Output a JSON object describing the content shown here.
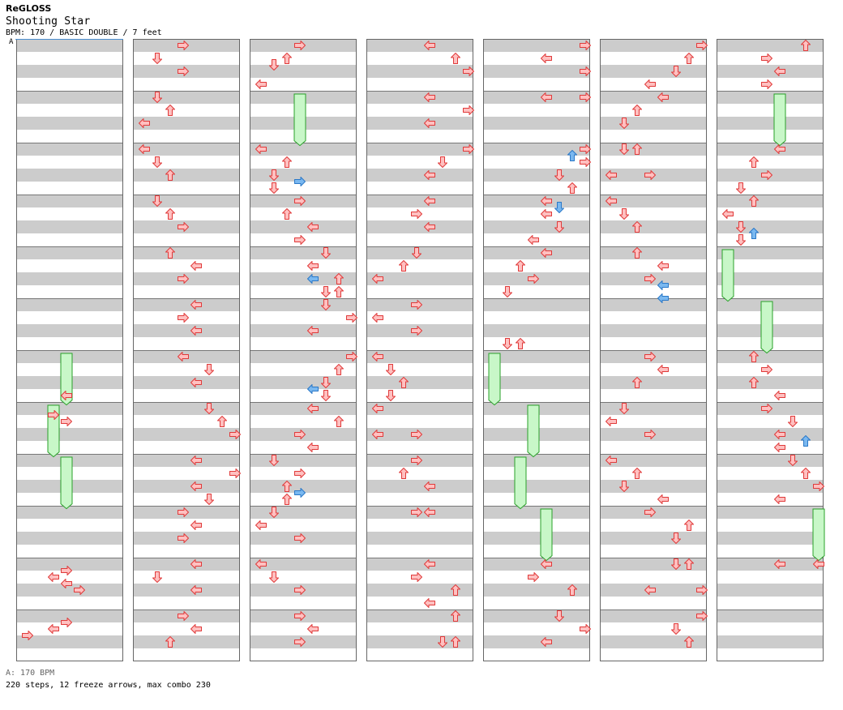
{
  "song": {
    "artist": "ReGLOSS",
    "title": "Shooting Star",
    "info": "BPM: 170 / BASIC DOUBLE / 7 feet",
    "bpm_marker": "A"
  },
  "footer": {
    "bpm_legend": "A: 170 BPM",
    "stats": "220 steps, 12 freeze arrows, max combo 230"
  },
  "colors": {
    "stripe": "#cccccc",
    "arrow_fill": "#ffc0c0",
    "arrow_stroke": "#e03a3a",
    "blue_fill": "#7ab8f0",
    "blue_stroke": "#2a78c8",
    "freeze_fill": "#c8f7c8",
    "freeze_stroke": "#2aa02a",
    "bpm_line": "#4a8ed0"
  },
  "chart_data": {
    "type": "step-chart",
    "columns": 7,
    "measures_per_column": 12,
    "beats_per_measure": 4,
    "lanes": [
      "P1-Left",
      "P1-Down",
      "P1-Up",
      "P1-Right",
      "P2-Left",
      "P2-Down",
      "P2-Up",
      "P2-Right"
    ],
    "arrow_legend": {
      "L": "left",
      "D": "down",
      "U": "up",
      "R": "right"
    },
    "columns_data": [
      {
        "notes": [
          [
            27,
            "L",
            4
          ],
          [
            28.5,
            "R",
            3
          ],
          [
            29,
            "R",
            4
          ],
          [
            40.5,
            "R",
            4
          ],
          [
            41,
            "L",
            3
          ],
          [
            41.5,
            "L",
            4
          ],
          [
            42,
            "R",
            5
          ],
          [
            44.5,
            "R",
            4
          ],
          [
            45,
            "L",
            3
          ],
          [
            45.5,
            "R",
            1
          ]
        ],
        "freezes": [
          [
            24,
            27.6,
            4
          ],
          [
            28,
            31.6,
            3
          ],
          [
            32,
            35.6,
            4
          ]
        ]
      },
      {
        "notes": [
          [
            0,
            "R",
            4
          ],
          [
            1,
            "D",
            2
          ],
          [
            2,
            "R",
            4
          ],
          [
            4,
            "D",
            2
          ],
          [
            5,
            "U",
            3
          ],
          [
            6,
            "L",
            1
          ],
          [
            8,
            "L",
            1
          ],
          [
            9,
            "D",
            2
          ],
          [
            10,
            "U",
            3
          ],
          [
            12,
            "D",
            2
          ],
          [
            13,
            "U",
            3
          ],
          [
            14,
            "R",
            4
          ],
          [
            16,
            "U",
            3
          ],
          [
            17,
            "L",
            5
          ],
          [
            18,
            "R",
            4
          ],
          [
            20,
            "L",
            5
          ],
          [
            21,
            "R",
            4
          ],
          [
            22,
            "L",
            5
          ],
          [
            24,
            "L",
            4
          ],
          [
            25,
            "D",
            6
          ],
          [
            26,
            "L",
            5
          ],
          [
            28,
            "D",
            6
          ],
          [
            29,
            "U",
            7
          ],
          [
            30,
            "R",
            8
          ],
          [
            32,
            "L",
            5
          ],
          [
            33,
            "R",
            8
          ],
          [
            34,
            "L",
            5
          ],
          [
            35,
            "D",
            6
          ],
          [
            36,
            "R",
            4
          ],
          [
            37,
            "L",
            5
          ],
          [
            38,
            "R",
            4
          ],
          [
            40,
            "L",
            5
          ],
          [
            41,
            "D",
            2
          ],
          [
            42,
            "L",
            5
          ],
          [
            44,
            "R",
            4
          ],
          [
            45,
            "L",
            5
          ],
          [
            46,
            "U",
            3
          ]
        ],
        "freezes": []
      },
      {
        "notes": [
          [
            0,
            "R",
            4
          ],
          [
            1,
            "U",
            3
          ],
          [
            1.5,
            "D",
            2
          ],
          [
            3,
            "L",
            1
          ],
          [
            8,
            "L",
            1
          ],
          [
            9,
            "U",
            3
          ],
          [
            10,
            "D",
            2
          ],
          [
            10.5,
            "R",
            4,
            "blue"
          ],
          [
            11,
            "D",
            2
          ],
          [
            12,
            "R",
            4
          ],
          [
            13,
            "U",
            3
          ],
          [
            14,
            "L",
            5
          ],
          [
            15,
            "R",
            4
          ],
          [
            16,
            "D",
            6
          ],
          [
            17,
            "L",
            5
          ],
          [
            18,
            "L",
            5,
            "blue"
          ],
          [
            18,
            "U",
            7
          ],
          [
            19,
            "U",
            7
          ],
          [
            19,
            "D",
            6
          ],
          [
            20,
            "D",
            6
          ],
          [
            21,
            "R",
            8
          ],
          [
            22,
            "L",
            5
          ],
          [
            24,
            "R",
            8
          ],
          [
            25,
            "U",
            7
          ],
          [
            26,
            "D",
            6
          ],
          [
            26.5,
            "L",
            5,
            "blue"
          ],
          [
            27,
            "D",
            6
          ],
          [
            28,
            "L",
            5
          ],
          [
            29,
            "U",
            7
          ],
          [
            30,
            "R",
            4
          ],
          [
            31,
            "L",
            5
          ],
          [
            32,
            "D",
            2
          ],
          [
            33,
            "R",
            4
          ],
          [
            34,
            "U",
            3
          ],
          [
            34.5,
            "R",
            4,
            "blue"
          ],
          [
            35,
            "U",
            3
          ],
          [
            36,
            "D",
            2
          ],
          [
            37,
            "L",
            1
          ],
          [
            38,
            "R",
            4
          ],
          [
            40,
            "L",
            1
          ],
          [
            41,
            "D",
            2
          ],
          [
            42,
            "R",
            4
          ],
          [
            44,
            "R",
            4
          ],
          [
            45,
            "L",
            5
          ],
          [
            46,
            "R",
            4
          ]
        ],
        "freezes": [
          [
            4,
            7.6,
            4
          ]
        ]
      },
      {
        "notes": [
          [
            0,
            "L",
            5
          ],
          [
            1,
            "U",
            7
          ],
          [
            2,
            "R",
            8
          ],
          [
            4,
            "L",
            5
          ],
          [
            5,
            "R",
            8
          ],
          [
            6,
            "L",
            5
          ],
          [
            8,
            "R",
            8
          ],
          [
            9,
            "D",
            6
          ],
          [
            10,
            "L",
            5
          ],
          [
            12,
            "L",
            5
          ],
          [
            13,
            "R",
            4
          ],
          [
            14,
            "L",
            5
          ],
          [
            16,
            "D",
            4
          ],
          [
            17,
            "U",
            3
          ],
          [
            18,
            "L",
            1
          ],
          [
            20,
            "R",
            4
          ],
          [
            21,
            "L",
            1
          ],
          [
            22,
            "R",
            4
          ],
          [
            24,
            "L",
            1
          ],
          [
            25,
            "D",
            2
          ],
          [
            26,
            "U",
            3
          ],
          [
            27,
            "D",
            2
          ],
          [
            28,
            "L",
            1
          ],
          [
            30,
            "L",
            1
          ],
          [
            30,
            "R",
            4
          ],
          [
            32,
            "R",
            4
          ],
          [
            33,
            "U",
            3
          ],
          [
            34,
            "L",
            5
          ],
          [
            36,
            "R",
            4
          ],
          [
            36,
            "L",
            5
          ],
          [
            40,
            "L",
            5
          ],
          [
            41,
            "R",
            4
          ],
          [
            42,
            "U",
            7
          ],
          [
            43,
            "L",
            5
          ],
          [
            44,
            "U",
            7
          ],
          [
            46,
            "D",
            6
          ],
          [
            46,
            "U",
            7
          ]
        ],
        "freezes": []
      },
      {
        "notes": [
          [
            0,
            "R",
            8
          ],
          [
            1,
            "L",
            5
          ],
          [
            2,
            "R",
            8
          ],
          [
            4,
            "L",
            5
          ],
          [
            4,
            "R",
            8
          ],
          [
            8,
            "R",
            8
          ],
          [
            8.5,
            "U",
            7,
            "blue"
          ],
          [
            9,
            "R",
            8
          ],
          [
            10,
            "D",
            6
          ],
          [
            11,
            "U",
            7
          ],
          [
            12,
            "L",
            5
          ],
          [
            12.5,
            "D",
            6,
            "blue"
          ],
          [
            13,
            "L",
            5
          ],
          [
            14,
            "D",
            6
          ],
          [
            15,
            "L",
            4
          ],
          [
            16,
            "L",
            5
          ],
          [
            17,
            "U",
            3
          ],
          [
            18,
            "R",
            4
          ],
          [
            19,
            "D",
            2
          ],
          [
            23,
            "D",
            2
          ],
          [
            23,
            "U",
            3
          ],
          [
            40,
            "L",
            5
          ],
          [
            41,
            "R",
            4
          ],
          [
            42,
            "U",
            7
          ],
          [
            44,
            "D",
            6
          ],
          [
            45,
            "R",
            8
          ],
          [
            46,
            "L",
            5
          ]
        ],
        "freezes": [
          [
            24,
            27.6,
            1
          ],
          [
            28,
            31.6,
            4
          ],
          [
            32,
            35.6,
            3
          ],
          [
            36,
            39.6,
            5
          ]
        ]
      },
      {
        "notes": [
          [
            0,
            "R",
            8
          ],
          [
            1,
            "U",
            7
          ],
          [
            2,
            "D",
            6
          ],
          [
            3,
            "L",
            4
          ],
          [
            4,
            "L",
            5
          ],
          [
            5,
            "U",
            3
          ],
          [
            6,
            "D",
            2
          ],
          [
            8,
            "D",
            2
          ],
          [
            8,
            "U",
            3
          ],
          [
            10,
            "L",
            1
          ],
          [
            10,
            "R",
            4
          ],
          [
            12,
            "L",
            1
          ],
          [
            13,
            "D",
            2
          ],
          [
            14,
            "U",
            3
          ],
          [
            16,
            "U",
            3
          ],
          [
            17,
            "L",
            5
          ],
          [
            18,
            "R",
            4
          ],
          [
            18.5,
            "L",
            5,
            "blue"
          ],
          [
            19.5,
            "L",
            5,
            "blue"
          ],
          [
            24,
            "R",
            4
          ],
          [
            25,
            "L",
            5
          ],
          [
            26,
            "U",
            3
          ],
          [
            28,
            "D",
            2
          ],
          [
            29,
            "L",
            1
          ],
          [
            30,
            "R",
            4
          ],
          [
            32,
            "L",
            1
          ],
          [
            33,
            "U",
            3
          ],
          [
            34,
            "D",
            2
          ],
          [
            35,
            "L",
            5
          ],
          [
            36,
            "R",
            4
          ],
          [
            37,
            "U",
            7
          ],
          [
            38,
            "D",
            6
          ],
          [
            40,
            "D",
            6
          ],
          [
            40,
            "U",
            7
          ],
          [
            42,
            "L",
            4
          ],
          [
            42,
            "R",
            8
          ],
          [
            44,
            "R",
            8
          ],
          [
            45,
            "D",
            6
          ],
          [
            46,
            "U",
            7
          ]
        ],
        "freezes": []
      },
      {
        "notes": [
          [
            0,
            "U",
            7
          ],
          [
            1,
            "R",
            4
          ],
          [
            2,
            "L",
            5
          ],
          [
            3,
            "R",
            4
          ],
          [
            8,
            "L",
            5
          ],
          [
            9,
            "U",
            3
          ],
          [
            10,
            "R",
            4
          ],
          [
            11,
            "D",
            2
          ],
          [
            12,
            "U",
            3
          ],
          [
            13,
            "L",
            1
          ],
          [
            14,
            "D",
            2
          ],
          [
            14.5,
            "U",
            3,
            "blue"
          ],
          [
            15,
            "D",
            2
          ],
          [
            24,
            "U",
            3
          ],
          [
            25,
            "R",
            4
          ],
          [
            26,
            "U",
            3
          ],
          [
            27,
            "L",
            5
          ],
          [
            28,
            "R",
            4
          ],
          [
            29,
            "D",
            6
          ],
          [
            30,
            "L",
            5
          ],
          [
            30.5,
            "U",
            7,
            "blue"
          ],
          [
            31,
            "L",
            5
          ],
          [
            32,
            "D",
            6
          ],
          [
            33,
            "U",
            7
          ],
          [
            34,
            "R",
            8
          ],
          [
            35,
            "L",
            5
          ],
          [
            40,
            "L",
            5
          ],
          [
            40,
            "L",
            8
          ]
        ],
        "freezes": [
          [
            4,
            7.6,
            5
          ],
          [
            16,
            19.6,
            1
          ],
          [
            20,
            23.6,
            4
          ],
          [
            36,
            39.6,
            8
          ]
        ]
      }
    ]
  }
}
